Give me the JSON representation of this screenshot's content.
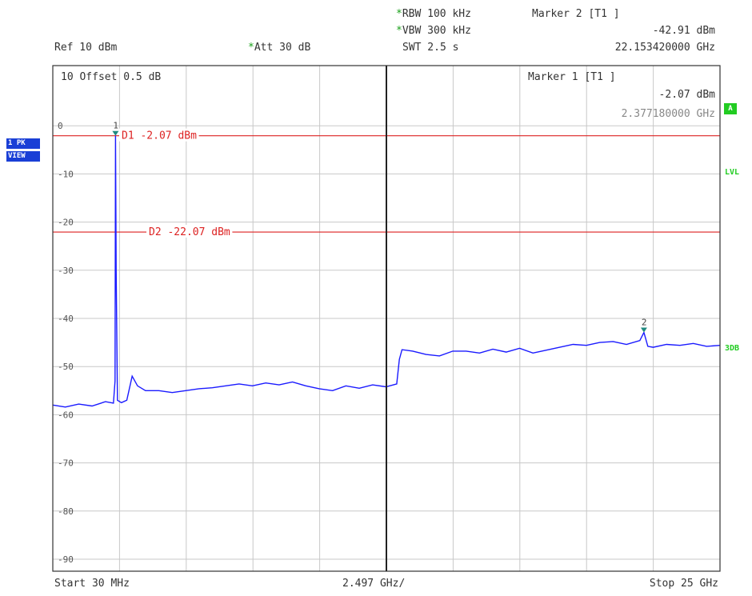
{
  "header": {
    "rbw_star": "*",
    "rbw": "RBW 100 kHz",
    "vbw_star": "*",
    "vbw": "VBW 300 kHz",
    "swt": "SWT 2.5 s",
    "ref": "Ref  10 dBm",
    "att_star": "*",
    "att": "Att  30 dB",
    "marker2_title": "Marker 2 [T1 ]",
    "marker2_level": "-42.91 dBm",
    "marker2_freq": "22.153420000 GHz"
  },
  "plot_header": {
    "offset": "10  Offset  0.5 dB",
    "marker1_title": "Marker 1 [T1 ]",
    "marker1_level": "-2.07 dBm",
    "marker1_freq": "2.377180000 GHz"
  },
  "side": {
    "trace_badge": "1 PK",
    "view_badge": "VIEW",
    "a_box": "A",
    "lvl": "LVL",
    "threedb": "3DB"
  },
  "footer": {
    "start": "Start 30 MHz",
    "span_div": "2.497 GHz/",
    "stop": "Stop 25 GHz"
  },
  "colors": {
    "trace": "#1a1aff",
    "display_line": "#dd2222",
    "marker": "#1f8a80",
    "grid": "#c8c8c8"
  },
  "chart_data": {
    "type": "line",
    "xlim": [
      0.03,
      25.0
    ],
    "ylim": [
      -90,
      10
    ],
    "x_unit": "GHz",
    "y_unit": "dBm",
    "y_tick_labels": [
      "0",
      "-10",
      "-20",
      "-30",
      "-40",
      "-50",
      "-60",
      "-70",
      "-80",
      "-90"
    ],
    "y_tick_values": [
      0,
      -10,
      -20,
      -30,
      -40,
      -50,
      -60,
      -70,
      -80,
      -90
    ],
    "display_lines": [
      {
        "label": "D1 -2.07 dBm",
        "value": -2.07
      },
      {
        "label": "D2 -22.07 dBm",
        "value": -22.07
      }
    ],
    "markers": [
      {
        "id": "1",
        "x": 2.377,
        "y": -2.07
      },
      {
        "id": "2",
        "x": 22.153,
        "y": -42.91
      }
    ],
    "series": [
      {
        "x": [
          0.03,
          0.5,
          1.0,
          1.5,
          2.0,
          2.3,
          2.36,
          2.377,
          2.4,
          2.45,
          2.6,
          2.8,
          3.0,
          3.2,
          3.5,
          4.0,
          4.5,
          5.0,
          5.5,
          6.0,
          6.5,
          7.0,
          7.5,
          8.0,
          8.5,
          9.0,
          9.5,
          10.0,
          10.5,
          11.0,
          11.5,
          12.0,
          12.5,
          12.9,
          13.0,
          13.1,
          13.5,
          14.0,
          14.5,
          15.0,
          15.5,
          16.0,
          16.5,
          17.0,
          17.5,
          18.0,
          18.5,
          19.0,
          19.5,
          20.0,
          20.5,
          21.0,
          21.5,
          22.0,
          22.153,
          22.3,
          22.5,
          23.0,
          23.5,
          24.0,
          24.5,
          25.0
        ],
        "y": [
          -58.0,
          -58.4,
          -57.8,
          -58.2,
          -57.3,
          -57.6,
          -53.0,
          -2.07,
          -30.0,
          -57.0,
          -57.5,
          -57.0,
          -52.0,
          -54.0,
          -55.0,
          -55.0,
          -55.4,
          -55.0,
          -54.6,
          -54.4,
          -54.0,
          -53.6,
          -54.0,
          -53.4,
          -53.8,
          -53.2,
          -54.0,
          -54.6,
          -55.0,
          -54.0,
          -54.5,
          -53.8,
          -54.2,
          -53.6,
          -48.5,
          -46.5,
          -46.8,
          -47.5,
          -47.8,
          -46.8,
          -46.8,
          -47.2,
          -46.4,
          -47.0,
          -46.2,
          -47.2,
          -46.6,
          -46.0,
          -45.4,
          -45.6,
          -45.0,
          -44.8,
          -45.4,
          -44.6,
          -42.91,
          -45.8,
          -46.0,
          -45.4,
          -45.6,
          -45.2,
          -45.8,
          -45.6
        ]
      }
    ]
  }
}
